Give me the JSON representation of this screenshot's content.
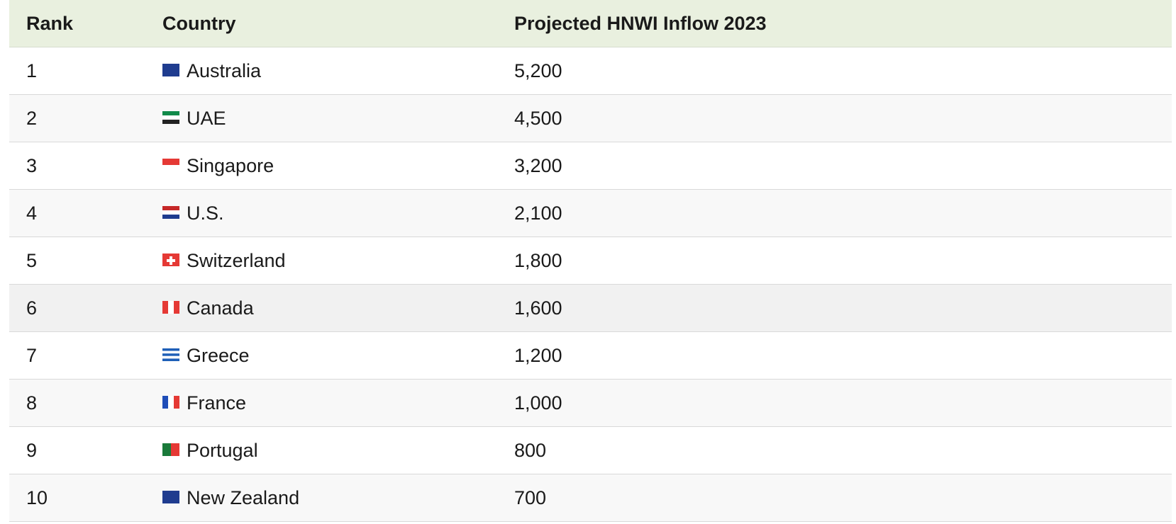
{
  "table": {
    "header": [
      "Rank",
      "Country",
      "Projected HNWI Inflow 2023"
    ],
    "rows": [
      [
        1,
        "Australia",
        "5,200"
      ],
      [
        2,
        "UAE",
        "4,500"
      ],
      [
        3,
        "Singapore",
        "3,200"
      ],
      [
        4,
        "U.S.",
        "2,100"
      ],
      [
        5,
        "Switzerland",
        "1,800"
      ],
      [
        6,
        "Canada",
        "1,600"
      ],
      [
        7,
        "Greece",
        "1,200"
      ],
      [
        8,
        "France",
        "1,000"
      ],
      [
        9,
        "Portugal",
        "800"
      ],
      [
        10,
        "New Zealand",
        "700"
      ]
    ]
  }
}
